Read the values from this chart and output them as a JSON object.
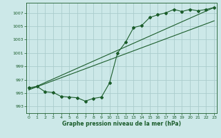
{
  "xlabel": "Graphe pression niveau de la mer (hPa)",
  "bg_color": "#cce8e8",
  "grid_color": "#aacccc",
  "line_color": "#1a5c2a",
  "x_ticks": [
    0,
    1,
    2,
    3,
    4,
    5,
    6,
    7,
    8,
    9,
    10,
    11,
    12,
    13,
    14,
    15,
    16,
    17,
    18,
    19,
    20,
    21,
    22,
    23
  ],
  "y_ticks": [
    993,
    995,
    997,
    999,
    1001,
    1003,
    1005,
    1007
  ],
  "ylim": [
    992.0,
    1008.5
  ],
  "xlim": [
    -0.3,
    23.3
  ],
  "pressure_data": [
    995.8,
    996.0,
    995.2,
    995.1,
    994.5,
    994.4,
    994.3,
    993.8,
    994.2,
    994.4,
    996.5,
    1001.0,
    1002.6,
    1004.8,
    1005.1,
    1006.3,
    1006.7,
    1007.0,
    1007.5,
    1007.2,
    1007.5,
    1007.3,
    1007.5,
    1007.8
  ],
  "trend1_x": [
    0,
    23
  ],
  "trend1_y": [
    995.5,
    1005.8
  ],
  "trend2_x": [
    0,
    23
  ],
  "trend2_y": [
    995.5,
    1007.8
  ],
  "xlabel_fontsize": 5.5,
  "tick_fontsize": 4.5,
  "linewidth": 0.8,
  "marker_size": 2.0
}
